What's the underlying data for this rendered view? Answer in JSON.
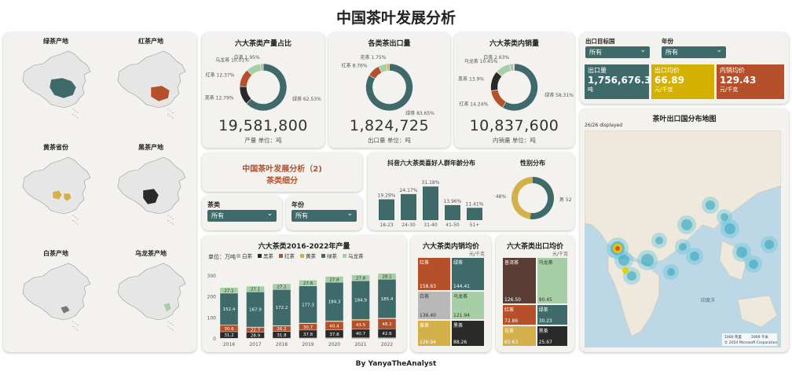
{
  "page": {
    "title": "中国茶叶发展分析",
    "footer": "By  YanyaTheAnalyst"
  },
  "maps": [
    {
      "title": "绿茶产地",
      "color": "#3e6a6a"
    },
    {
      "title": "红茶产地",
      "color": "#b5502a"
    },
    {
      "title": "黄茶省份",
      "color": "#d4b04a"
    },
    {
      "title": "黑茶产地",
      "color": "#2a2a2a"
    },
    {
      "title": "白茶产地",
      "color": "#777777"
    },
    {
      "title": "乌龙茶产地",
      "color": "#a6cfa6"
    }
  ],
  "colors": {
    "green": "#3e6a6a",
    "red": "#b5502a",
    "yellow": "#d4b04a",
    "black": "#2a2a2a",
    "white": "#b8b8b8",
    "oolong": "#a6cfa6",
    "dark": "#5a3d35"
  },
  "donut_production": {
    "title": "六大茶类产量占比",
    "total": "19,581,800",
    "caption": "产量 单位：吨",
    "slices": [
      {
        "label": "绿茶 62.53%",
        "value": 62.53,
        "color": "#3e6a6a"
      },
      {
        "label": "黑茶 12.79%",
        "value": 12.79,
        "color": "#2a2a2a"
      },
      {
        "label": "红茶 12.37%",
        "value": 12.37,
        "color": "#b5502a"
      },
      {
        "label": "乌龙茶 10.01%",
        "value": 10.01,
        "color": "#a6cfa6"
      },
      {
        "label": "白茶 1.95%",
        "value": 1.95,
        "color": "#b8b8b8"
      }
    ]
  },
  "donut_export": {
    "title": "各类茶出口量",
    "total": "1,824,725",
    "caption": "出口量 单位：吨",
    "slices": [
      {
        "label": "绿茶 83.65%",
        "value": 83.65,
        "color": "#3e6a6a"
      },
      {
        "label": "红茶 8.76%",
        "value": 8.76,
        "color": "#b5502a"
      },
      {
        "label": "",
        "value": 5.84,
        "color": "#a6cfa6"
      },
      {
        "label": "花茶 1.75%",
        "value": 1.75,
        "color": "#d4b04a"
      }
    ]
  },
  "donut_domestic": {
    "title": "六大茶类内销量",
    "total": "10,837,600",
    "caption": "内销量 单位：吨",
    "slices": [
      {
        "label": "绿茶 58.31%",
        "value": 58.31,
        "color": "#3e6a6a"
      },
      {
        "label": "红茶 14.24%",
        "value": 14.24,
        "color": "#b5502a"
      },
      {
        "label": "黑茶 13.9%",
        "value": 13.9,
        "color": "#2a2a2a"
      },
      {
        "label": "乌龙茶 10.45%",
        "value": 10.45,
        "color": "#a6cfa6"
      },
      {
        "label": "白茶 2.63%",
        "value": 2.63,
        "color": "#b8b8b8"
      },
      {
        "label": "",
        "value": 0.47,
        "color": "#d4b04a"
      }
    ]
  },
  "subtitle_card": {
    "line1": "中国茶叶发展分析（2)",
    "line2": "茶类细分"
  },
  "slicers": {
    "tea_label": "茶类",
    "tea_value": "所有",
    "year_label": "年份",
    "year_value": "所有",
    "export_country_label": "出口目标国",
    "export_country_value": "所有",
    "year2_label": "年份",
    "year2_value": "所有"
  },
  "age_chart": {
    "title": "抖音六大茶类喜好人群年龄分布",
    "categories": [
      "18-23",
      "24-30",
      "31-40",
      "41-50",
      "51+"
    ],
    "values": [
      19.29,
      24.17,
      31.18,
      13.96,
      11.41
    ],
    "labels": [
      "19.29%",
      "24.17%",
      "31.18%",
      "13.96%",
      "11.41%"
    ]
  },
  "gender_chart": {
    "title": "性别分布",
    "slices": [
      {
        "label": "男 52%",
        "value": 52,
        "color": "#3e6a6a"
      },
      {
        "label": "女 48%",
        "value": 48,
        "color": "#d4b04a"
      }
    ]
  },
  "kpis": [
    {
      "label": "出口量",
      "value": "1,756,676.39",
      "unit": "吨",
      "color": "#3e6a6a"
    },
    {
      "label": "出口均价",
      "value": "66.89",
      "unit": "元/千克",
      "color": "#d4b000"
    },
    {
      "label": "内销均价",
      "value": "129.43",
      "unit": "元/千克",
      "color": "#b5502a"
    }
  ],
  "world_map": {
    "title": "茶叶出口国分布地图",
    "displayed": "26/26 displayed",
    "ocean": "印度洋",
    "copyright": "© 2024 Microsoft Corporation",
    "scale1": "1000 英里",
    "scale2": "2000 千米"
  },
  "chart_data": {
    "type": "bar",
    "title": "六大茶类2016-2022年产量",
    "unit_label": "单位：万吨",
    "categories": [
      "2016",
      "2017",
      "2018",
      "2019",
      "2020",
      "2021",
      "2022"
    ],
    "ylim": [
      0,
      300
    ],
    "yticks": [
      "0",
      "100",
      "200",
      "300"
    ],
    "series": [
      {
        "name": "白茶",
        "color": "#b8b8b8",
        "values": [
          2.7,
          3.1,
          3.4,
          4.0,
          4.5,
          5.0,
          5.0
        ]
      },
      {
        "name": "黑茶",
        "color": "#2a2a2a",
        "values": [
          31.2,
          28.9,
          31.8,
          37.8,
          37.8,
          40.7,
          42.6
        ]
      },
      {
        "name": "红茶",
        "color": "#b5502a",
        "values": [
          30.6,
          22.7,
          26.2,
          30.7,
          40.4,
          43.5,
          48.2
        ]
      },
      {
        "name": "黄茶",
        "color": "#d4b04a",
        "values": [
          1.0,
          1.5,
          1.8,
          2.5,
          3.0,
          3.2,
          3.3
        ]
      },
      {
        "name": "绿茶",
        "color": "#3e6a6a",
        "values": [
          152.4,
          167.9,
          172.2,
          177.3,
          184.3,
          184.9,
          185.4
        ]
      },
      {
        "name": "乌龙茶",
        "color": "#a6cfa6",
        "values": [
          27.1,
          27.1,
          27.1,
          27.8,
          27.8,
          27.8,
          28.1
        ]
      }
    ],
    "labels": {
      "黑茶": [
        "31.2",
        "28.9",
        "31.8",
        "37.8",
        "37.8",
        "40.7",
        "42.6"
      ],
      "红茶": [
        "30.6",
        "22.7",
        "26.2",
        "30.7",
        "40.4",
        "43.5",
        "48.2"
      ],
      "绿茶": [
        "152.4",
        "167.9",
        "172.2",
        "177.3",
        "184.3",
        "184.9",
        "185.4"
      ],
      "乌龙茶": [
        "27.1",
        "27.1",
        "27.1",
        "27.8",
        "27.8",
        "27.8",
        "28.1"
      ]
    }
  },
  "treemap_domestic": {
    "title": "六大茶类内销均价",
    "unit": "元/千克",
    "cells": [
      {
        "name": "红茶",
        "value": "158.63",
        "color": "#b5502a"
      },
      {
        "name": "绿茶",
        "value": "144.41",
        "color": "#3e6a6a"
      },
      {
        "name": "白茶",
        "value": "136.40",
        "color": "#b8b8b8"
      },
      {
        "name": "乌龙茶",
        "value": "121.94",
        "color": "#a6cfa6"
      },
      {
        "name": "黄茶",
        "value": "126.94",
        "color": "#d4b04a"
      },
      {
        "name": "黑茶",
        "value": "88.26",
        "color": "#2a2a2a"
      }
    ]
  },
  "treemap_export": {
    "title": "六大茶类出口均价",
    "unit": "元/千克",
    "cells": [
      {
        "name": "普洱茶",
        "value": "126.50",
        "color": "#5a3d35"
      },
      {
        "name": "乌龙茶",
        "value": "90.45",
        "color": "#a6cfa6"
      },
      {
        "name": "红茶",
        "value": "72.86",
        "color": "#b5502a"
      },
      {
        "name": "绿茶",
        "value": "30.23",
        "color": "#3e6a6a"
      },
      {
        "name": "花茶",
        "value": "65.63",
        "color": "#d4b04a"
      },
      {
        "name": "黑茶",
        "value": "25.67",
        "color": "#2a2a2a"
      }
    ]
  }
}
